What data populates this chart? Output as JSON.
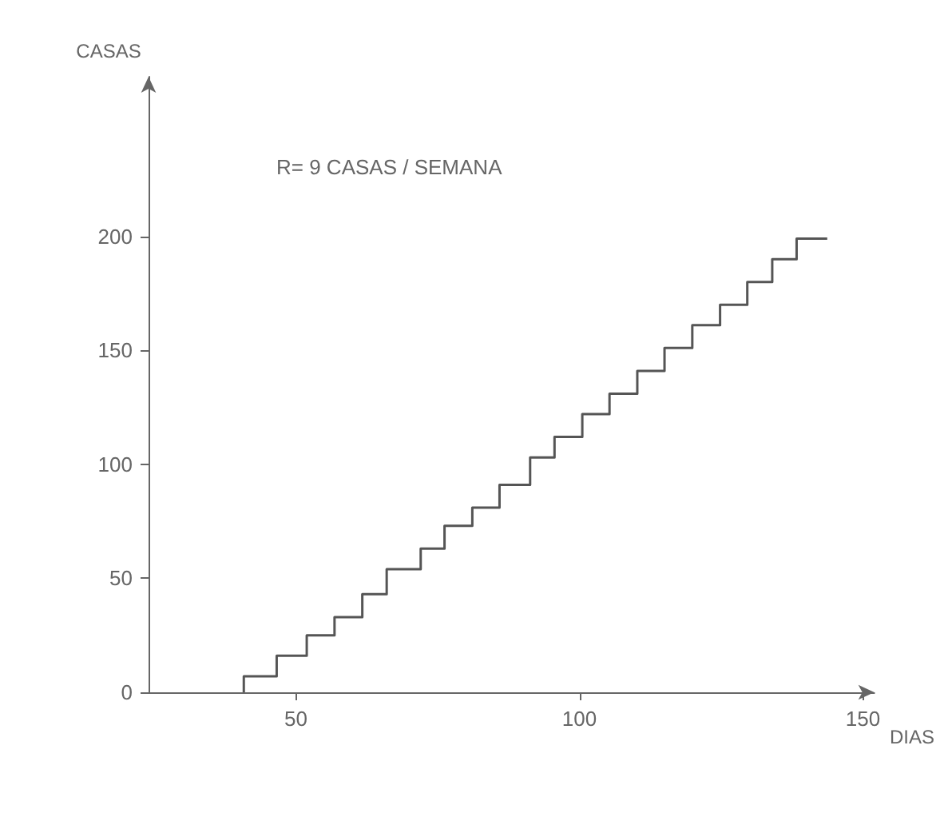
{
  "chart_data": {
    "type": "step",
    "xlabel": "DIAS",
    "ylabel": "CASAS",
    "annotations": [
      "R= 9 CASAS / SEMANA"
    ],
    "x": [
      40.8,
      46.6,
      51.9,
      56.8,
      61.7,
      66.0,
      72.0,
      76.2,
      81.1,
      85.9,
      91.3,
      95.6,
      100.5,
      105.3,
      110.2,
      115.0,
      119.9,
      124.8,
      129.6,
      134.0,
      138.3,
      143.7
    ],
    "values": [
      0,
      7,
      16,
      25,
      33,
      43,
      54,
      63,
      73,
      81,
      91,
      103,
      112,
      122,
      131,
      141,
      151,
      161,
      170,
      180,
      190,
      199
    ],
    "color": "#555555",
    "xlim": [
      24,
      152
    ],
    "xticks": [
      50,
      100,
      150
    ],
    "ylim": [
      0,
      270
    ],
    "yticks": [
      0,
      50,
      100,
      150,
      200
    ],
    "grid": false,
    "marker": "none",
    "line_style": "solid"
  }
}
